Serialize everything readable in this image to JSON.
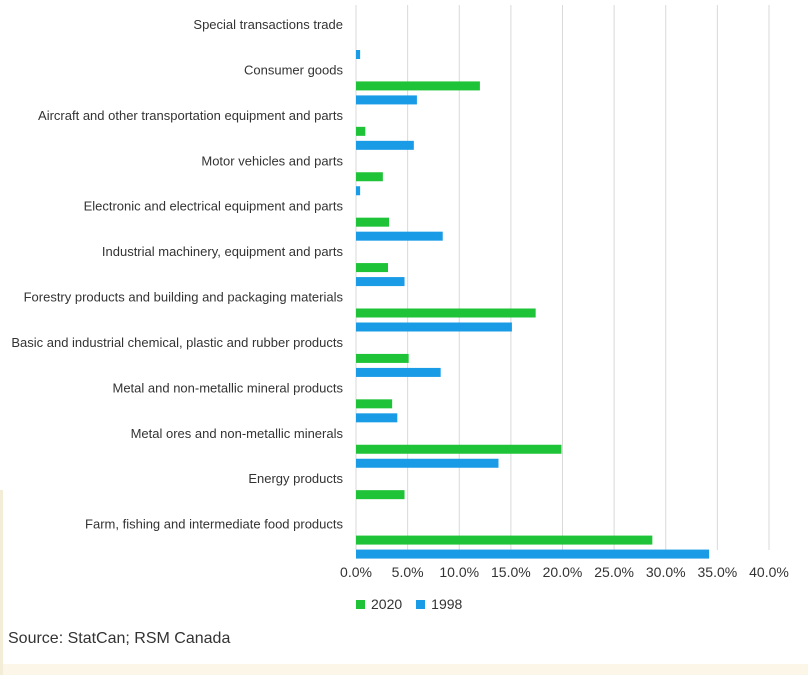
{
  "source": "Source: StatCan; RSM Canada",
  "colors": {
    "s2020": "#1ec337",
    "s1998": "#1a9be6",
    "grid": "#d9d9d9"
  },
  "chart_data": {
    "type": "bar",
    "orientation": "horizontal",
    "categories": [
      "Special transactions trade",
      "Consumer goods",
      "Aircraft and other transportation equipment and parts",
      "Motor vehicles and parts",
      "Electronic and electrical equipment and parts",
      "Industrial machinery, equipment and parts",
      "Forestry products and building and packaging materials",
      "Basic and industrial chemical, plastic and rubber products",
      "Metal and non-metallic mineral products",
      "Metal ores and non-metallic minerals",
      "Energy products",
      "Farm, fishing and intermediate food products"
    ],
    "series": [
      {
        "name": "2020",
        "values": [
          0.0,
          12.0,
          0.9,
          2.6,
          3.2,
          3.1,
          17.4,
          5.1,
          3.5,
          19.9,
          4.7,
          28.7
        ]
      },
      {
        "name": "1998",
        "values": [
          0.4,
          5.9,
          5.6,
          0.4,
          8.4,
          4.7,
          15.1,
          8.2,
          4.0,
          13.8,
          0.0,
          34.2
        ]
      }
    ],
    "xlim": [
      0,
      40
    ],
    "ticks": [
      "0.0%",
      "5.0%",
      "10.0%",
      "15.0%",
      "20.0%",
      "25.0%",
      "30.0%",
      "35.0%",
      "40.0%"
    ],
    "grid": true,
    "legend_position": "bottom"
  }
}
